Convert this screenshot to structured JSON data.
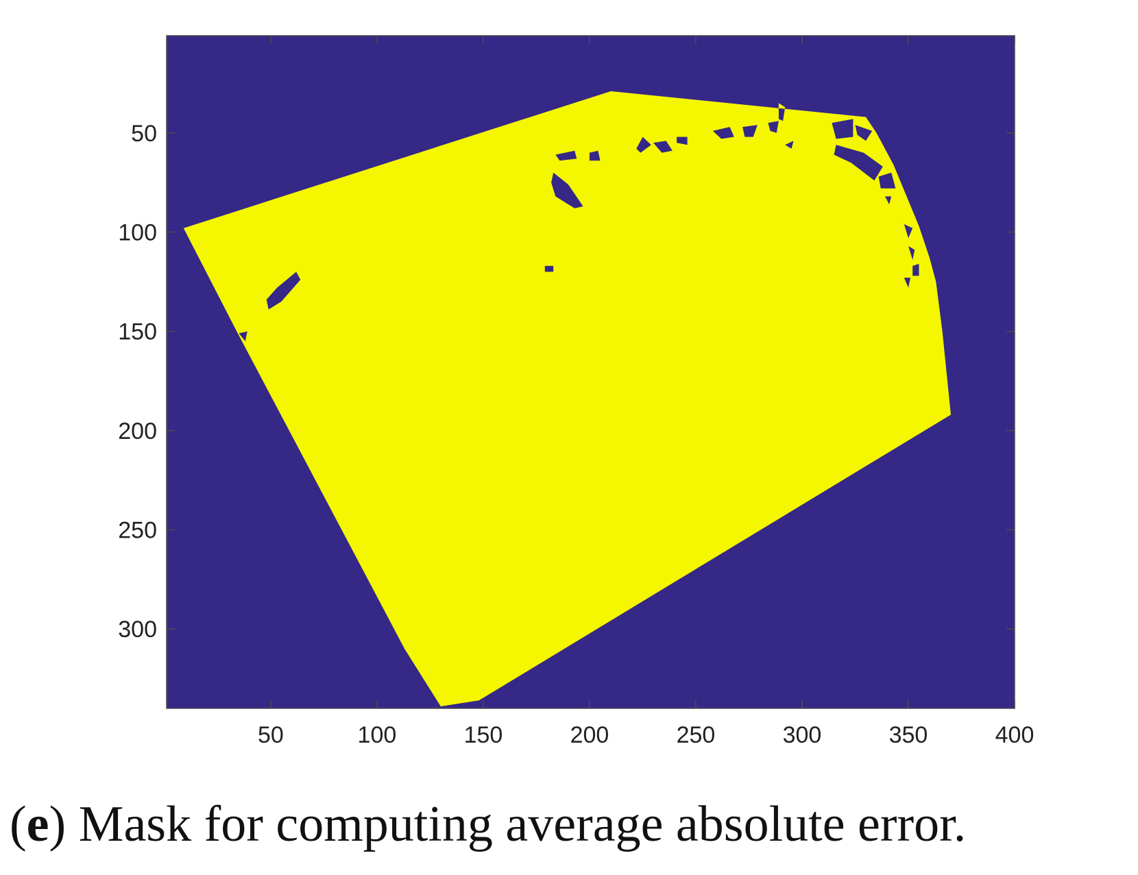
{
  "chart_data": {
    "type": "heatmap",
    "title": "",
    "xlabel": "",
    "ylabel": "",
    "xlim": [
      1,
      400
    ],
    "ylim": [
      1,
      340
    ],
    "y_axis_direction": "reversed",
    "x_ticks": [
      50,
      100,
      150,
      200,
      250,
      300,
      350,
      400
    ],
    "y_ticks": [
      50,
      100,
      150,
      200,
      250,
      300
    ],
    "x_tick_labels": [
      "50",
      "100",
      "150",
      "200",
      "250",
      "300",
      "350",
      "400"
    ],
    "y_tick_labels": [
      "50",
      "100",
      "150",
      "200",
      "250",
      "300"
    ],
    "grid": false,
    "legend": "none",
    "colors": {
      "background": "#352887",
      "mask": "#f5f700"
    },
    "values": {
      "outside": 0,
      "inside": 1
    },
    "mask_polygon": [
      [
        9,
        98
      ],
      [
        210,
        29
      ],
      [
        330,
        42
      ],
      [
        335,
        50
      ],
      [
        343,
        66
      ],
      [
        355,
        97
      ],
      [
        360,
        113
      ],
      [
        363,
        125
      ],
      [
        366,
        150
      ],
      [
        370,
        192
      ],
      [
        148,
        336
      ],
      [
        130,
        339
      ],
      [
        113,
        310
      ],
      [
        34,
        150
      ]
    ],
    "holes": [
      [
        [
          183,
          70
        ],
        [
          190,
          76
        ],
        [
          197,
          87
        ],
        [
          193,
          88
        ],
        [
          184,
          82
        ],
        [
          182,
          75
        ]
      ],
      [
        [
          53,
          128
        ],
        [
          62,
          120
        ],
        [
          64,
          124
        ],
        [
          55,
          135
        ],
        [
          49,
          139
        ],
        [
          48,
          134
        ]
      ],
      [
        [
          179,
          117
        ],
        [
          183,
          117
        ],
        [
          183,
          120
        ],
        [
          179,
          120
        ]
      ],
      [
        [
          184,
          61
        ],
        [
          193,
          59
        ],
        [
          194,
          63
        ],
        [
          186,
          64
        ]
      ],
      [
        [
          200,
          60
        ],
        [
          204,
          59
        ],
        [
          205,
          64
        ],
        [
          200,
          64
        ]
      ],
      [
        [
          222,
          58
        ],
        [
          225,
          52
        ],
        [
          229,
          56
        ],
        [
          224,
          60
        ]
      ],
      [
        [
          230,
          55
        ],
        [
          236,
          54
        ],
        [
          239,
          59
        ],
        [
          234,
          60
        ]
      ],
      [
        [
          241,
          52
        ],
        [
          246,
          52
        ],
        [
          246,
          56
        ],
        [
          241,
          55
        ]
      ],
      [
        [
          258,
          49
        ],
        [
          266,
          47
        ],
        [
          268,
          52
        ],
        [
          262,
          53
        ]
      ],
      [
        [
          272,
          47
        ],
        [
          279,
          46
        ],
        [
          277,
          52
        ],
        [
          273,
          52
        ]
      ],
      [
        [
          284,
          45
        ],
        [
          289,
          44
        ],
        [
          288,
          50
        ],
        [
          285,
          49
        ]
      ],
      [
        [
          289,
          35
        ],
        [
          292,
          37
        ],
        [
          291,
          44
        ],
        [
          289,
          43
        ]
      ],
      [
        [
          292,
          56
        ],
        [
          296,
          54
        ],
        [
          295,
          58
        ]
      ],
      [
        [
          314,
          45
        ],
        [
          324,
          43
        ],
        [
          324,
          52
        ],
        [
          316,
          53
        ]
      ],
      [
        [
          325,
          46
        ],
        [
          333,
          49
        ],
        [
          330,
          54
        ],
        [
          326,
          51
        ]
      ],
      [
        [
          316,
          56
        ],
        [
          329,
          60
        ],
        [
          338,
          67
        ],
        [
          334,
          74
        ],
        [
          323,
          65
        ],
        [
          315,
          61
        ]
      ],
      [
        [
          336,
          72
        ],
        [
          342,
          70
        ],
        [
          344,
          78
        ],
        [
          337,
          78
        ]
      ],
      [
        [
          339,
          82
        ],
        [
          342,
          82
        ],
        [
          341,
          86
        ]
      ],
      [
        [
          348,
          96
        ],
        [
          352,
          98
        ],
        [
          350,
          103
        ]
      ],
      [
        [
          350,
          107
        ],
        [
          353,
          109
        ],
        [
          352,
          114
        ]
      ],
      [
        [
          352,
          117
        ],
        [
          355,
          116
        ],
        [
          355,
          122
        ],
        [
          352,
          122
        ]
      ],
      [
        [
          348,
          123
        ],
        [
          351,
          123
        ],
        [
          350,
          128
        ]
      ],
      [
        [
          35,
          151
        ],
        [
          39,
          150
        ],
        [
          38,
          155
        ]
      ]
    ]
  },
  "caption": {
    "open_paren": "(",
    "label": "e",
    "text": ") Mask for computing average absolute error."
  }
}
